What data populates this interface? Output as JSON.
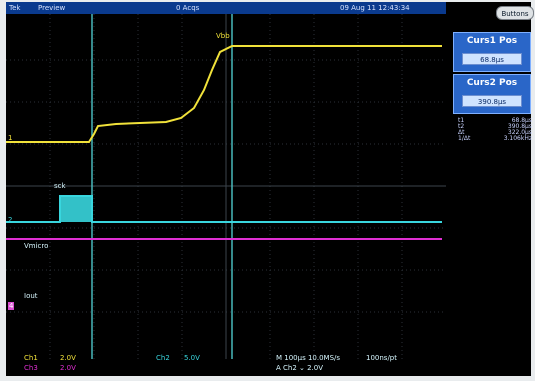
{
  "topbar": {
    "brand": "Tek",
    "mode": "Preview",
    "acqs": "0 Acqs",
    "datetime": "09 Aug 11 12:43:34"
  },
  "side_panel": {
    "buttons_label": "Buttons",
    "curs1": {
      "title": "Curs1 Pos",
      "value": "68.8µs"
    },
    "curs2": {
      "title": "Curs2 Pos",
      "value": "390.8µs"
    },
    "readout": [
      {
        "key": "t1",
        "value": "68.8µs"
      },
      {
        "key": "t2",
        "value": "390.8µs"
      },
      {
        "key": "Δt",
        "value": "322.0µs"
      },
      {
        "key": "1/Δt",
        "value": "3.106kHz"
      }
    ]
  },
  "trace_labels": {
    "vbb": "Vbb",
    "sck": "sck",
    "vmicro": "Vmicro",
    "iout": "Iout"
  },
  "channel_markers": {
    "ch1": "1",
    "ch2": "2",
    "ch4": "4"
  },
  "bottom": {
    "ch1_label": "Ch1",
    "ch1_scale": "2.0V",
    "ch3_label": "Ch3",
    "ch3_scale": "2.0V",
    "ch2_label": "Ch2",
    "ch2_scale": "5.0V",
    "timebase": "M 100µs 10.0MS/s",
    "record": "100ns/pt",
    "trigger": "A  Ch2  ⌄  2.0V"
  },
  "colors": {
    "ch1": "#f1e23a",
    "ch2": "#39d6de",
    "ch3": "#e02fd2",
    "ch4": "#d84bd0",
    "grid": "#2b3138",
    "cursor": "#4ec6c9"
  }
}
